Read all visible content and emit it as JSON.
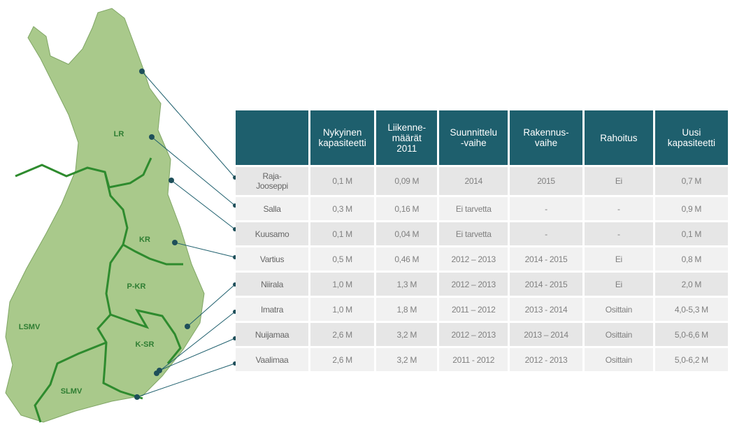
{
  "map": {
    "regions": [
      "LR",
      "KR",
      "P-KR",
      "LSMV",
      "K-SR",
      "SLMV"
    ]
  },
  "table": {
    "header": [
      "",
      "Nykyinen\nkapasiteetti",
      "Liikenne-\nmäärät\n2011",
      "Suunnittelu\n-vaihe",
      "Rakennus-\nvaihe",
      "Rahoitus",
      "Uusi\nkapasiteetti"
    ],
    "rows": [
      [
        "Raja-\nJooseppi",
        "0,1 M",
        "0,09 M",
        "2014",
        "2015",
        "Ei",
        "0,7 M"
      ],
      [
        "Salla",
        "0,3 M",
        "0,16 M",
        "Ei tarvetta",
        "-",
        "-",
        "0,9 M"
      ],
      [
        "Kuusamo",
        "0,1 M",
        "0,04 M",
        "Ei tarvetta",
        "-",
        "-",
        "0,1 M"
      ],
      [
        "Vartius",
        "0,5 M",
        "0,46 M",
        "2012 – 2013",
        "2014 - 2015",
        "Ei",
        "0,8 M"
      ],
      [
        "Niirala",
        "1,0 M",
        "1,3 M",
        "2012 – 2013",
        "2014 - 2015",
        "Ei",
        "2,0 M"
      ],
      [
        "Imatra",
        "1,0 M",
        "1,8 M",
        "2011 – 2012",
        "2013 -  2014",
        "Osittain",
        "4,0-5,3 M"
      ],
      [
        "Nuijamaa",
        "2,6 M",
        "3,2 M",
        "2012 – 2013",
        "2013 – 2014",
        "Osittain",
        "5,0-6,6 M"
      ],
      [
        "Vaalimaa",
        "2,6 M",
        "3,2 M",
        "2011 - 2012",
        "2012 - 2013",
        "Osittain",
        "5,0-6,2 M"
      ]
    ]
  }
}
